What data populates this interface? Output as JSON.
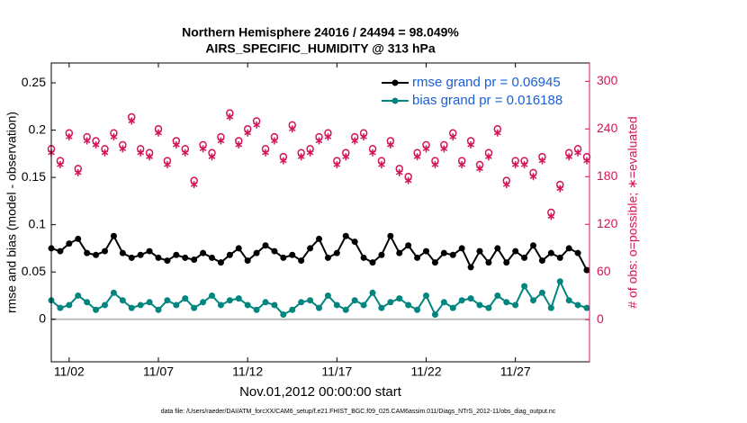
{
  "chart_data": {
    "type": "line",
    "title": "Northern Hemisphere 24016 / 24494 = 98.049%",
    "subtitle": "AIRS_SPECIFIC_HUMIDITY @ 313 hPa",
    "x_label": "Nov.01,2012 00:00:00 start",
    "y_label": "rmse and bias (model - observation)",
    "y2_label": "# of obs: o=possible; ∗=evaluated",
    "footnote": "data file: /Users/raeder/DAI/ATM_forcXX/CAM6_setup/f.e21.FHIST_BGC.f09_025.CAM6assim.011/Diags_NTrS_2012-11/obs_diag_output.nc",
    "x": [
      0,
      0.5,
      1,
      1.5,
      2,
      2.5,
      3,
      3.5,
      4,
      4.5,
      5,
      5.5,
      6,
      6.5,
      7,
      7.5,
      8,
      8.5,
      9,
      9.5,
      10,
      10.5,
      11,
      11.5,
      12,
      12.5,
      13,
      13.5,
      14,
      14.5,
      15,
      15.5,
      16,
      16.5,
      17,
      17.5,
      18,
      18.5,
      19,
      19.5,
      20,
      20.5,
      21,
      21.5,
      22,
      22.5,
      23,
      23.5,
      24,
      24.5,
      25,
      25.5,
      26,
      26.5,
      27,
      27.5,
      28,
      28.5,
      29,
      29.5,
      30
    ],
    "xlim": [
      0,
      30.15
    ],
    "xticks": [
      {
        "value": 1,
        "label": "11/02"
      },
      {
        "value": 6,
        "label": "11/07"
      },
      {
        "value": 11,
        "label": "11/12"
      },
      {
        "value": 16,
        "label": "11/17"
      },
      {
        "value": 21,
        "label": "11/22"
      },
      {
        "value": 26,
        "label": "11/27"
      }
    ],
    "ylim": [
      -0.045,
      0.271
    ],
    "yticks": [
      0,
      0.05,
      0.1,
      0.15,
      0.2,
      0.25
    ],
    "y2lim": [
      -53,
      323
    ],
    "y2ticks": [
      0,
      60,
      120,
      180,
      240,
      300
    ],
    "zero_line_color": "#bbbbbb",
    "legend": "upper right",
    "series": [
      {
        "name": "rmse grand pr = 0.06945",
        "color": "#000000",
        "marker": "dot",
        "values": [
          0.075,
          0.072,
          0.08,
          0.085,
          0.07,
          0.068,
          0.072,
          0.088,
          0.07,
          0.065,
          0.068,
          0.072,
          0.065,
          0.062,
          0.068,
          0.065,
          0.063,
          0.07,
          0.065,
          0.06,
          0.068,
          0.075,
          0.062,
          0.07,
          0.078,
          0.072,
          0.065,
          0.068,
          0.062,
          0.075,
          0.085,
          0.065,
          0.07,
          0.088,
          0.082,
          0.065,
          0.06,
          0.068,
          0.088,
          0.07,
          0.078,
          0.065,
          0.072,
          0.06,
          0.07,
          0.068,
          0.075,
          0.055,
          0.072,
          0.06,
          0.075,
          0.06,
          0.072,
          0.065,
          0.078,
          0.062,
          0.07,
          0.065,
          0.075,
          0.07,
          0.052
        ]
      },
      {
        "name": "bias grand pr = 0.016188",
        "color": "#00857f",
        "marker": "dot",
        "values": [
          0.02,
          0.012,
          0.015,
          0.025,
          0.018,
          0.01,
          0.015,
          0.028,
          0.02,
          0.012,
          0.015,
          0.018,
          0.01,
          0.02,
          0.015,
          0.022,
          0.012,
          0.018,
          0.025,
          0.015,
          0.02,
          0.022,
          0.015,
          0.01,
          0.018,
          0.015,
          0.005,
          0.01,
          0.018,
          0.02,
          0.012,
          0.025,
          0.015,
          0.01,
          0.02,
          0.015,
          0.028,
          0.012,
          0.018,
          0.022,
          0.015,
          0.01,
          0.025,
          0.005,
          0.018,
          0.012,
          0.02,
          0.022,
          0.015,
          0.012,
          0.025,
          0.018,
          0.015,
          0.035,
          0.02,
          0.028,
          0.012,
          0.04,
          0.02,
          0.015,
          0.012
        ]
      },
      {
        "color": "#d4145a",
        "marker": "circle",
        "axis": "y2",
        "values": [
          215,
          200,
          235,
          190,
          230,
          225,
          215,
          235,
          220,
          255,
          215,
          210,
          240,
          200,
          225,
          215,
          175,
          220,
          210,
          230,
          260,
          225,
          240,
          250,
          215,
          230,
          205,
          245,
          210,
          215,
          230,
          235,
          200,
          210,
          230,
          235,
          215,
          200,
          225,
          190,
          180,
          210,
          220,
          200,
          220,
          235,
          200,
          225,
          195,
          210,
          240,
          175,
          200,
          200,
          185,
          205,
          135,
          170,
          210,
          215,
          205
        ]
      },
      {
        "color": "#d4145a",
        "marker": "asterisk",
        "axis": "y2",
        "values": [
          210,
          195,
          230,
          185,
          225,
          220,
          210,
          230,
          215,
          250,
          210,
          205,
          235,
          195,
          220,
          210,
          170,
          215,
          205,
          225,
          255,
          220,
          235,
          245,
          210,
          225,
          200,
          240,
          205,
          210,
          225,
          230,
          195,
          205,
          225,
          230,
          210,
          195,
          220,
          185,
          175,
          205,
          215,
          195,
          215,
          230,
          195,
          220,
          190,
          205,
          235,
          170,
          195,
          195,
          180,
          200,
          130,
          165,
          205,
          210,
          200
        ]
      }
    ]
  }
}
